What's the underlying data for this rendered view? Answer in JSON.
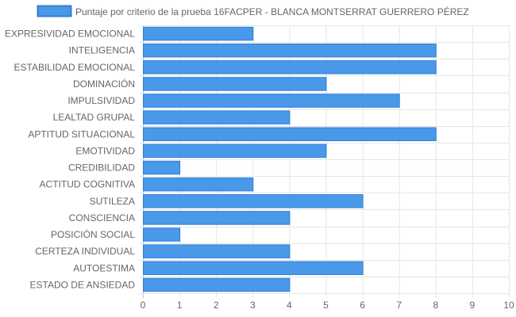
{
  "chart_data": {
    "type": "bar",
    "orientation": "horizontal",
    "categories": [
      "EXPRESIVIDAD EMOCIONAL",
      "INTELIGENCIA",
      "ESTABILIDAD EMOCIONAL",
      "DOMINACIÓN",
      "IMPULSIVIDAD",
      "LEALTAD GRUPAL",
      "APTITUD SITUACIONAL",
      "EMOTIVIDAD",
      "CREDIBILIDAD",
      "ACTITUD COGNITIVA",
      "SUTILEZA",
      "CONSCIENCIA",
      "POSICIÓN SOCIAL",
      "CERTEZA INDIVIDUAL",
      "AUTOESTIMA",
      "ESTADO DE ANSIEDAD"
    ],
    "series": [
      {
        "name": "Puntaje por criterio de la prueba 16FACPER - BLANCA MONTSERRAT GUERRERO PÉREZ",
        "values": [
          3,
          8,
          8,
          5,
          7,
          4,
          8,
          5,
          1,
          3,
          6,
          4,
          1,
          4,
          6,
          4
        ],
        "color": "#4a98e8",
        "border_color": "#2f7fd8"
      }
    ],
    "xlim": [
      0,
      10
    ],
    "x_ticks": [
      "0",
      "1",
      "2",
      "3",
      "4",
      "5",
      "6",
      "7",
      "8",
      "9",
      "10"
    ],
    "grid": true,
    "legend_position": "top",
    "title": "",
    "xlabel": "",
    "ylabel": ""
  }
}
